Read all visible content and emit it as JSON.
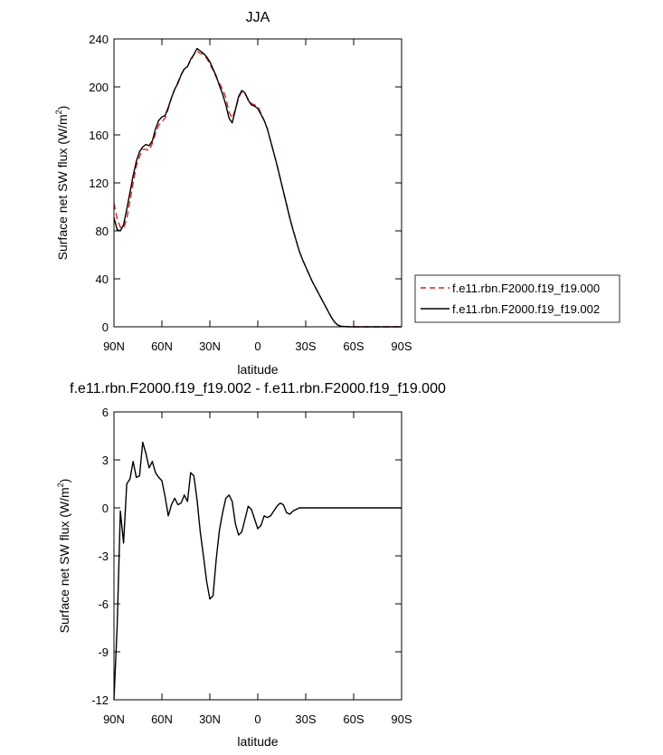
{
  "chart_data": [
    {
      "type": "line",
      "title": "JJA",
      "xlabel": "latitude",
      "ylabel": "Surface net SW flux (W/m",
      "ylabel_sup": "2",
      "ylabel_end": ")",
      "xlim": [
        90,
        -90
      ],
      "ylim": [
        0,
        240
      ],
      "x_ticks": [
        90,
        60,
        30,
        0,
        -30,
        -60,
        -90
      ],
      "x_tick_labels": [
        "90N",
        "60N",
        "30N",
        "0",
        "30S",
        "60S",
        "90S"
      ],
      "y_ticks": [
        0,
        40,
        80,
        120,
        160,
        200,
        240
      ],
      "y_tick_labels": [
        "0",
        "40",
        "80",
        "120",
        "160",
        "200",
        "240"
      ],
      "legend_position": "right",
      "series": [
        {
          "name": "f.e11.rbn.F2000.f19_f19.000",
          "color": "#d62020",
          "dash": true,
          "x": [
            90,
            88,
            86,
            84,
            82,
            80,
            78,
            76,
            74,
            72,
            70,
            68,
            66,
            64,
            62,
            60,
            58,
            56,
            54,
            52,
            50,
            48,
            46,
            44,
            42,
            40,
            38,
            36,
            34,
            32,
            30,
            28,
            26,
            24,
            22,
            20,
            18,
            16,
            14,
            12,
            10,
            8,
            6,
            4,
            2,
            0,
            -2,
            -4,
            -6,
            -8,
            -10,
            -12,
            -14,
            -16,
            -18,
            -20,
            -22,
            -24,
            -26,
            -28,
            -30,
            -32,
            -34,
            -36,
            -38,
            -40,
            -42,
            -44,
            -46,
            -48,
            -50,
            -52,
            -54,
            -56,
            -58,
            -60,
            -62,
            -64,
            -66,
            -68,
            -70,
            -72,
            -74,
            -76,
            -78,
            -80,
            -82,
            -84,
            -86,
            -88,
            -90
          ],
          "y": [
            103,
            90,
            83,
            82,
            90,
            105,
            120,
            134,
            142,
            148,
            148,
            147,
            153,
            161,
            168,
            171,
            174,
            182,
            191,
            198,
            204,
            210,
            215,
            217,
            222,
            227,
            230,
            228,
            227,
            224,
            219,
            214,
            208,
            203,
            198,
            191,
            179,
            174,
            181,
            191,
            196,
            194,
            190,
            186,
            185,
            184,
            178,
            172,
            165,
            155,
            145,
            135,
            124,
            113,
            102,
            91,
            81,
            72,
            63,
            56,
            50,
            44,
            38,
            33,
            28,
            23,
            18,
            13,
            8,
            4,
            1.5,
            0.5,
            0.2,
            0.1,
            0,
            0,
            0,
            0,
            0,
            0,
            0,
            0,
            0,
            0,
            0,
            0,
            0,
            0,
            0,
            0,
            0
          ]
        },
        {
          "name": "f.e11.rbn.F2000.f19_f19.002",
          "color": "#000000",
          "dash": false,
          "x": [
            90,
            88,
            86,
            84,
            82,
            80,
            78,
            76,
            74,
            72,
            70,
            68,
            66,
            64,
            62,
            60,
            58,
            56,
            54,
            52,
            50,
            48,
            46,
            44,
            42,
            40,
            38,
            36,
            34,
            32,
            30,
            28,
            26,
            24,
            22,
            20,
            18,
            16,
            14,
            12,
            10,
            8,
            6,
            4,
            2,
            0,
            -2,
            -4,
            -6,
            -8,
            -10,
            -12,
            -14,
            -16,
            -18,
            -20,
            -22,
            -24,
            -26,
            -28,
            -30,
            -32,
            -34,
            -36,
            -38,
            -40,
            -42,
            -44,
            -46,
            -48,
            -50,
            -52,
            -54,
            -56,
            -58,
            -60,
            -62,
            -64,
            -66,
            -68,
            -70,
            -72,
            -74,
            -76,
            -78,
            -80,
            -82,
            -84,
            -86,
            -88,
            -90
          ],
          "y": [
            91,
            81,
            80,
            85,
            98,
            112,
            126,
            138,
            146,
            150,
            152,
            151,
            155,
            165,
            172,
            175,
            176,
            183,
            191,
            198,
            203,
            210,
            215,
            217,
            223,
            227,
            232,
            230,
            228,
            225,
            221,
            215,
            209,
            201,
            194,
            185,
            174,
            170,
            181,
            192,
            197,
            195,
            189,
            185,
            184,
            182,
            177,
            172,
            165,
            155,
            145,
            135,
            124,
            113,
            102,
            91,
            81,
            72,
            63,
            56,
            50,
            44,
            38,
            33,
            28,
            23,
            18,
            13,
            8,
            4,
            1.5,
            0.5,
            0.2,
            0.1,
            0,
            0,
            0,
            0,
            0,
            0,
            0,
            0,
            0,
            0,
            0,
            0,
            0,
            0,
            0,
            0,
            0
          ]
        }
      ]
    },
    {
      "type": "line",
      "title": "f.e11.rbn.F2000.f19_f19.002 - f.e11.rbn.F2000.f19_f19.000",
      "xlabel": "latitude",
      "ylabel": "Surface net SW flux (W/m",
      "ylabel_sup": "2",
      "ylabel_end": ")",
      "xlim": [
        90,
        -90
      ],
      "ylim": [
        -12,
        6
      ],
      "x_ticks": [
        90,
        60,
        30,
        0,
        -30,
        -60,
        -90
      ],
      "x_tick_labels": [
        "90N",
        "60N",
        "30N",
        "0",
        "30S",
        "60S",
        "90S"
      ],
      "y_ticks": [
        -12,
        -9,
        -6,
        -3,
        0,
        3,
        6
      ],
      "y_tick_labels": [
        "-12",
        "-9",
        "-6",
        "-3",
        "0",
        "3",
        "6"
      ],
      "series": [
        {
          "color": "#000000",
          "dash": false,
          "x": [
            90,
            88,
            86,
            84,
            82,
            80,
            78,
            76,
            74,
            72,
            70,
            68,
            66,
            64,
            62,
            60,
            58,
            56,
            54,
            52,
            50,
            48,
            46,
            44,
            42,
            40,
            38,
            36,
            34,
            32,
            30,
            28,
            26,
            24,
            22,
            20,
            18,
            16,
            14,
            12,
            10,
            8,
            6,
            4,
            2,
            0,
            -2,
            -4,
            -6,
            -8,
            -10,
            -12,
            -14,
            -16,
            -18,
            -20,
            -22,
            -24,
            -26,
            -28,
            -30,
            -32,
            -34,
            -36,
            -38,
            -40,
            -42,
            -44,
            -46,
            -48,
            -50,
            -52,
            -54,
            -56,
            -58,
            -60,
            -62,
            -64,
            -66,
            -68,
            -70,
            -72,
            -74,
            -76,
            -78,
            -80,
            -82,
            -84,
            -86,
            -88,
            -90
          ],
          "y": [
            -12,
            -7.4,
            -0.2,
            -2.2,
            1.5,
            1.8,
            2.9,
            1.9,
            2.0,
            4.1,
            3.4,
            2.5,
            2.9,
            2.2,
            1.9,
            1.7,
            0.7,
            -0.5,
            0.2,
            0.6,
            0.2,
            0.3,
            0.8,
            0.4,
            2.2,
            2.0,
            0.5,
            -1.5,
            -3.0,
            -4.6,
            -5.7,
            -5.5,
            -3.2,
            -1.4,
            -0.3,
            0.6,
            0.8,
            0.4,
            -1.0,
            -1.7,
            -1.5,
            -0.7,
            0.1,
            -0.1,
            -0.7,
            -1.3,
            -1.1,
            -0.5,
            -0.6,
            -0.5,
            -0.2,
            0.1,
            0.3,
            0.2,
            -0.3,
            -0.4,
            -0.2,
            -0.1,
            0,
            0,
            0,
            0,
            0,
            0,
            0,
            0,
            0,
            0,
            0,
            0,
            0,
            0,
            0,
            0,
            0,
            0,
            0,
            0,
            0,
            0,
            0,
            0,
            0,
            0,
            0,
            0,
            0,
            0,
            0,
            0,
            0
          ]
        }
      ]
    }
  ]
}
